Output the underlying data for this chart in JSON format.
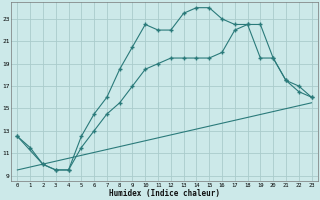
{
  "xlabel": "Humidex (Indice chaleur)",
  "background_color": "#cce9e9",
  "grid_color": "#aacccc",
  "line_color": "#2a7a7a",
  "xlim": [
    -0.5,
    23.5
  ],
  "ylim": [
    8.5,
    24.5
  ],
  "yticks": [
    9,
    11,
    13,
    15,
    17,
    19,
    21,
    23
  ],
  "xticks": [
    0,
    1,
    2,
    3,
    4,
    5,
    6,
    7,
    8,
    9,
    10,
    11,
    12,
    13,
    14,
    15,
    16,
    17,
    18,
    19,
    20,
    21,
    22,
    23
  ],
  "curve1_x": [
    0,
    1,
    2,
    3,
    4,
    5,
    6,
    7,
    8,
    9,
    10,
    11,
    12,
    13,
    14,
    15,
    16,
    17,
    18,
    19,
    20,
    21,
    22,
    23
  ],
  "curve1_y": [
    12.5,
    11.5,
    10.0,
    9.5,
    9.5,
    12.5,
    14.5,
    16.0,
    18.5,
    20.5,
    22.5,
    22.0,
    22.0,
    23.5,
    24.0,
    24.0,
    23.0,
    22.5,
    22.5,
    22.5,
    19.5,
    17.5,
    16.5,
    16.0
  ],
  "curve2_x": [
    0,
    2,
    3,
    4,
    5,
    6,
    7,
    8,
    9,
    10,
    11,
    12,
    13,
    14,
    15,
    16,
    17,
    18,
    19,
    20,
    21,
    22,
    23
  ],
  "curve2_y": [
    12.5,
    10.0,
    9.5,
    9.5,
    11.5,
    13.0,
    14.5,
    15.5,
    17.0,
    18.5,
    19.0,
    19.5,
    19.5,
    19.5,
    19.5,
    20.0,
    22.0,
    22.5,
    19.5,
    19.5,
    17.5,
    17.0,
    16.0
  ],
  "curve3_x": [
    0,
    23
  ],
  "curve3_y": [
    9.5,
    15.5
  ]
}
